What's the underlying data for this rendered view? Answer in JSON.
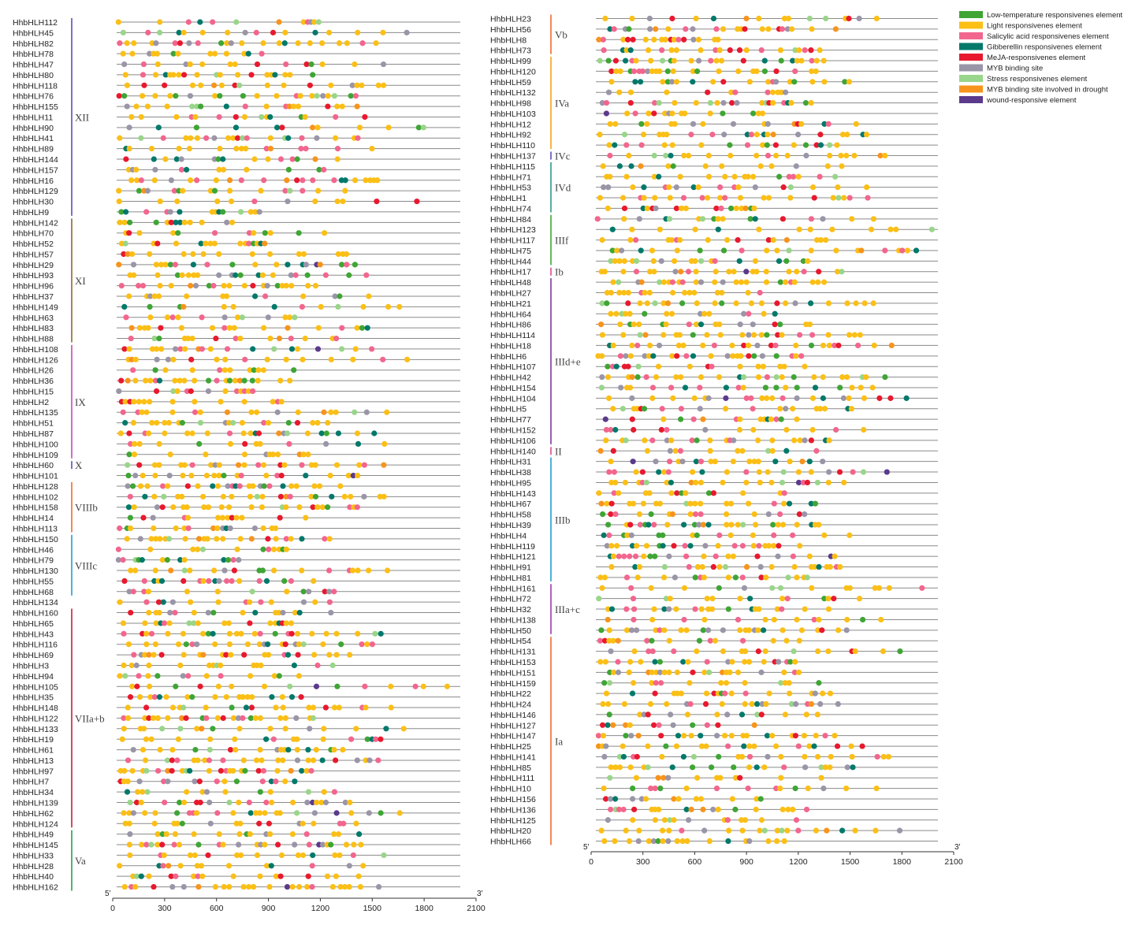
{
  "legend": [
    {
      "label": "Low-temperature responsivenes element",
      "color": "#3fa535",
      "icon": "swatch-icon"
    },
    {
      "label": "Light responsivenes element",
      "color": "#fbbf16",
      "icon": "swatch-icon"
    },
    {
      "label": "Salicylic acid responsivenes element",
      "color": "#f2668e",
      "icon": "swatch-icon"
    },
    {
      "label": "Gibberellin responsivenes element",
      "color": "#00796b",
      "icon": "swatch-icon"
    },
    {
      "label": "MeJA-responsivenes element",
      "color": "#e8192e",
      "icon": "swatch-icon"
    },
    {
      "label": "MYB binding site",
      "color": "#9b95a8",
      "icon": "swatch-icon"
    },
    {
      "label": "Stress responsivenes element",
      "color": "#99d58a",
      "icon": "swatch-icon"
    },
    {
      "label": "MYB binding site involved in drought",
      "color": "#f7941d",
      "icon": "swatch-icon"
    },
    {
      "label": "wound-responsive element",
      "color": "#5b3a8c",
      "icon": "swatch-icon"
    }
  ],
  "axis": {
    "start_label": "5'",
    "end_label": "3'",
    "ticks": [
      0,
      300,
      600,
      900,
      1200,
      1500,
      1800,
      2100
    ]
  },
  "panels": [
    {
      "genes": [
        "HhbHLH112",
        "HhbHLH45",
        "HhbHLH82",
        "HhbHLH78",
        "HhbHLH47",
        "HhbHLH80",
        "HhbHLH118",
        "HhbHLH76",
        "HhbHLH155",
        "HhbHLH11",
        "HhbHLH90",
        "HhbHLH41",
        "HhbHLH89",
        "HhbHLH144",
        "HhbHLH157",
        "HhbHLH16",
        "HhbHLH129",
        "HhbHLH30",
        "HhbHLH9",
        "HhbHLH142",
        "HhbHLH70",
        "HhbHLH52",
        "HhbHLH57",
        "HhbHLH29",
        "HhbHLH93",
        "HhbHLH96",
        "HhbHLH37",
        "HhbHLH149",
        "HhbHLH63",
        "HhbHLH83",
        "HhbHLH88",
        "HhbHLH108",
        "HhbHLH126",
        "HhbHLH26",
        "HhbHLH36",
        "HhbHLH15",
        "HhbHLH2",
        "HhbHLH135",
        "HhbHLH51",
        "HhbHLH87",
        "HhbHLH100",
        "HhbHLH109",
        "HhbHLH60",
        "HhbHLH101",
        "HhbHLH128",
        "HhbHLH102",
        "HhbHLH158",
        "HhbHLH14",
        "HhbHLH113",
        "HhbHLH150",
        "HhbHLH46",
        "HhbHLH79",
        "HhbHLH130",
        "HhbHLH55",
        "HhbHLH68",
        "HhbHLH134",
        "HhbHLH160",
        "HhbHLH65",
        "HhbHLH43",
        "HhbHLH116",
        "HhbHLH69",
        "HhbHLH3",
        "HhbHLH94",
        "HhbHLH105",
        "HhbHLH35",
        "HhbHLH148",
        "HhbHLH122",
        "HhbHLH133",
        "HhbHLH19",
        "HhbHLH61",
        "HhbHLH13",
        "HhbHLH97",
        "HhbHLH7",
        "HhbHLH34",
        "HhbHLH139",
        "HhbHLH62",
        "HhbHLH124",
        "HhbHLH49",
        "HhbHLH145",
        "HhbHLH33",
        "HhbHLH28",
        "HhbHLH40",
        "HhbHLH162"
      ],
      "groups": [
        {
          "label": "XII",
          "first": 0,
          "last": 18,
          "color": "#5b4fb4"
        },
        {
          "label": "XI",
          "first": 19,
          "last": 30,
          "color": "#8a6a2b"
        },
        {
          "label": "IX",
          "first": 31,
          "last": 41,
          "color": "#c849b4"
        },
        {
          "label": "X",
          "first": 42,
          "last": 42,
          "color": "#5b4fb4"
        },
        {
          "label": "VIIIb",
          "first": 44,
          "last": 48,
          "color": "#f26b2a"
        },
        {
          "label": "VIIIc",
          "first": 49,
          "last": 54,
          "color": "#1f9fd0"
        },
        {
          "label": "VIIa+b",
          "first": 56,
          "last": 76,
          "color": "#c8203a"
        },
        {
          "label": "Va",
          "first": 77,
          "last": 82,
          "color": "#2aa04a"
        }
      ]
    },
    {
      "genes": [
        "HhbHLH23",
        "HhbHLH56",
        "HhbHLH8",
        "HhbHLH73",
        "HhbHLH99",
        "HhbHLH120",
        "HhbHLH59",
        "HhbHLH132",
        "HhbHLH98",
        "HhbHLH103",
        "HhbHLH12",
        "HhbHLH92",
        "HhbHLH110",
        "HhbHLH137",
        "HhbHLH115",
        "HhbHLH71",
        "HhbHLH53",
        "HhbHLH1",
        "HhbHLH74",
        "HhbHLH84",
        "HhbHLH123",
        "HhbHLH117",
        "HhbHLH75",
        "HhbHLH44",
        "HhbHLH17",
        "HhbHLH48",
        "HhbHLH27",
        "HhbHLH21",
        "HhbHLH64",
        "HhbHLH86",
        "HhbHLH114",
        "HhbHLH18",
        "HhbHLH6",
        "HhbHLH107",
        "HhbHLH42",
        "HhbHLH154",
        "HhbHLH104",
        "HhbHLH5",
        "HhbHLH77",
        "HhbHLH152",
        "HhbHLH106",
        "HhbHLH140",
        "HhbHLH31",
        "HhbHLH38",
        "HhbHLH95",
        "HhbHLH143",
        "HhbHLH67",
        "HhbHLH58",
        "HhbHLH39",
        "HhbHLH4",
        "HhbHLH119",
        "HhbHLH121",
        "HhbHLH91",
        "HhbHLH81",
        "HhbHLH161",
        "HhbHLH72",
        "HhbHLH32",
        "HhbHLH138",
        "HhbHLH50",
        "HhbHLH54",
        "HhbHLH131",
        "HhbHLH153",
        "HhbHLH151",
        "HhbHLH159",
        "HhbHLH22",
        "HhbHLH24",
        "HhbHLH146",
        "HhbHLH127",
        "HhbHLH147",
        "HhbHLH25",
        "HhbHLH141",
        "HhbHLH85",
        "HhbHLH111",
        "HhbHLH10",
        "HhbHLH156",
        "HhbHLH136",
        "HhbHLH125",
        "HhbHLH20",
        "HhbHLH66"
      ],
      "groups": [
        {
          "label": "Vb",
          "first": 0,
          "last": 3,
          "color": "#f26b2a"
        },
        {
          "label": "IVa",
          "first": 4,
          "last": 12,
          "color": "#f7a21b"
        },
        {
          "label": "IVc",
          "first": 13,
          "last": 13,
          "color": "#5b4fb4"
        },
        {
          "label": "IVd",
          "first": 14,
          "last": 18,
          "color": "#2a9a8a"
        },
        {
          "label": "IIIf",
          "first": 19,
          "last": 23,
          "color": "#3fa535"
        },
        {
          "label": "Ib",
          "first": 24,
          "last": 24,
          "color": "#e0488a"
        },
        {
          "label": "IIId+e",
          "first": 25,
          "last": 40,
          "color": "#7b3a9b"
        },
        {
          "label": "II",
          "first": 41,
          "last": 41,
          "color": "#e0488a"
        },
        {
          "label": "IIIb",
          "first": 42,
          "last": 53,
          "color": "#1f9fd0"
        },
        {
          "label": "IIIa+c",
          "first": 54,
          "last": 58,
          "color": "#9b3aa8"
        },
        {
          "label": "Ia",
          "first": 59,
          "last": 78,
          "color": "#f26b2a"
        }
      ]
    }
  ]
}
